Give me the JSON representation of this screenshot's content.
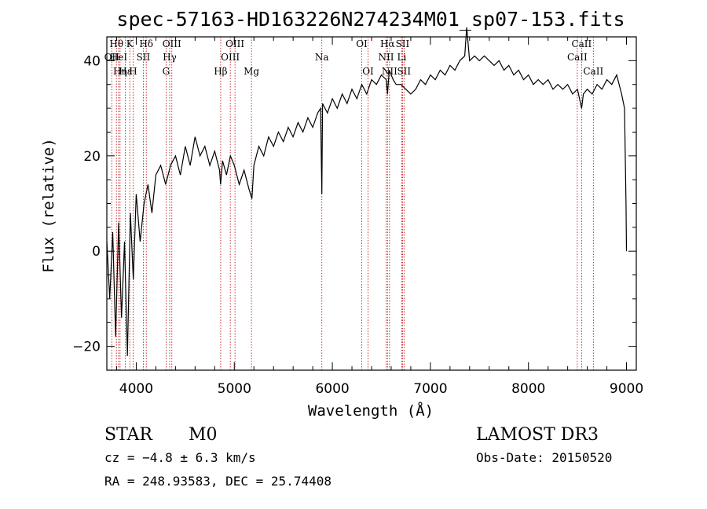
{
  "chart_data": {
    "type": "line",
    "title": "spec-57163-HD163226N274234M01_sp07-153.fits",
    "xlabel": "Wavelength (Å)",
    "ylabel": "Flux (relative)",
    "xlim": [
      3700,
      9100
    ],
    "ylim": [
      -25,
      45
    ],
    "xticks": [
      4000,
      5000,
      6000,
      7000,
      8000,
      9000
    ],
    "yticks": [
      -20,
      0,
      20,
      40
    ],
    "series": [
      {
        "name": "spectrum",
        "x": [
          3700,
          3730,
          3760,
          3790,
          3820,
          3850,
          3880,
          3910,
          3940,
          3970,
          4000,
          4040,
          4080,
          4120,
          4160,
          4200,
          4250,
          4300,
          4350,
          4400,
          4450,
          4500,
          4550,
          4600,
          4650,
          4700,
          4750,
          4800,
          4850,
          4860,
          4880,
          4920,
          4960,
          5000,
          5050,
          5100,
          5150,
          5180,
          5200,
          5250,
          5300,
          5350,
          5400,
          5450,
          5500,
          5550,
          5600,
          5650,
          5700,
          5750,
          5800,
          5850,
          5880,
          5893,
          5900,
          5950,
          6000,
          6050,
          6100,
          6150,
          6200,
          6250,
          6300,
          6350,
          6400,
          6450,
          6500,
          6550,
          6563,
          6580,
          6620,
          6650,
          6700,
          6750,
          6800,
          6850,
          6900,
          6950,
          7000,
          7050,
          7100,
          7150,
          7200,
          7250,
          7300,
          7350,
          7370,
          7400,
          7450,
          7500,
          7550,
          7600,
          7650,
          7700,
          7750,
          7800,
          7850,
          7900,
          7950,
          8000,
          8050,
          8100,
          8150,
          8200,
          8250,
          8300,
          8350,
          8400,
          8450,
          8500,
          8542,
          8560,
          8600,
          8650,
          8700,
          8750,
          8800,
          8850,
          8900,
          8950,
          8980,
          8995,
          9000
        ],
        "y": [
          2,
          -10,
          4,
          -18,
          6,
          -14,
          2,
          -22,
          8,
          -6,
          12,
          2,
          10,
          14,
          8,
          16,
          18,
          14,
          18,
          20,
          16,
          22,
          18,
          24,
          20,
          22,
          18,
          21,
          17,
          14,
          19,
          16,
          20,
          18,
          14,
          17,
          13,
          11,
          18,
          22,
          20,
          24,
          22,
          25,
          23,
          26,
          24,
          27,
          25,
          28,
          26,
          29,
          30,
          12,
          31,
          29,
          32,
          30,
          33,
          31,
          34,
          32,
          35,
          33,
          36,
          35,
          37,
          36,
          33,
          38,
          36,
          35,
          35,
          34,
          33,
          34,
          36,
          35,
          37,
          36,
          38,
          37,
          39,
          38,
          40,
          41,
          47,
          40,
          41,
          40,
          41,
          40,
          39,
          40,
          38,
          39,
          37,
          38,
          36,
          37,
          35,
          36,
          35,
          36,
          34,
          35,
          34,
          35,
          33,
          34,
          30,
          33,
          34,
          33,
          35,
          34,
          36,
          35,
          37,
          33,
          30,
          10,
          0
        ]
      }
    ],
    "lines": [
      {
        "wave": 3750,
        "label": "OII",
        "row": 2
      },
      {
        "wave": 3798,
        "label": "Hθ",
        "row": 1
      },
      {
        "wave": 3820,
        "label": "HeI",
        "row": 2
      },
      {
        "wave": 3835,
        "label": "Hη",
        "row": 3
      },
      {
        "wave": 3889,
        "label": "Hε",
        "row": 3
      },
      {
        "wave": 3934,
        "label": "K",
        "row": 1
      },
      {
        "wave": 3968,
        "label": "H",
        "row": 3
      },
      {
        "wave": 4072,
        "label": "SII",
        "row": 2
      },
      {
        "wave": 4102,
        "label": "Hδ",
        "row": 1
      },
      {
        "wave": 4304,
        "label": "G",
        "row": 3
      },
      {
        "wave": 4341,
        "label": "Hγ",
        "row": 2
      },
      {
        "wave": 4363,
        "label": "OIII",
        "row": 1
      },
      {
        "wave": 4861,
        "label": "Hβ",
        "row": 3
      },
      {
        "wave": 4959,
        "label": "OIII",
        "row": 2
      },
      {
        "wave": 5007,
        "label": "OIII",
        "row": 1
      },
      {
        "wave": 5175,
        "label": "Mg",
        "row": 3
      },
      {
        "wave": 5893,
        "label": "Na",
        "row": 2
      },
      {
        "wave": 6300,
        "label": "OI",
        "row": 1
      },
      {
        "wave": 6364,
        "label": "OI",
        "row": 3
      },
      {
        "wave": 6548,
        "label": "NII",
        "row": 2
      },
      {
        "wave": 6563,
        "label": "Hα",
        "row": 1
      },
      {
        "wave": 6583,
        "label": "NII",
        "row": 3
      },
      {
        "wave": 6708,
        "label": "Li",
        "row": 2
      },
      {
        "wave": 6716,
        "label": "SII",
        "row": 1
      },
      {
        "wave": 6731,
        "label": "SII",
        "row": 3
      },
      {
        "wave": 8498,
        "label": "CaII",
        "row": 2
      },
      {
        "wave": 8542,
        "label": "CaII",
        "row": 1
      },
      {
        "wave": 8662,
        "label": "CaII",
        "row": 3
      }
    ]
  },
  "colors": {
    "spectrum": "#000000",
    "line_markers": "#c00000",
    "axes": "#000000"
  },
  "info": {
    "class_label": "STAR",
    "subclass_label": "M0",
    "survey": "LAMOST DR3",
    "cz": "cz = −4.8 ± 6.3 km/s",
    "obs_date": "Obs-Date: 20150520",
    "coords": "RA = 248.93583, DEC =  25.74408"
  }
}
